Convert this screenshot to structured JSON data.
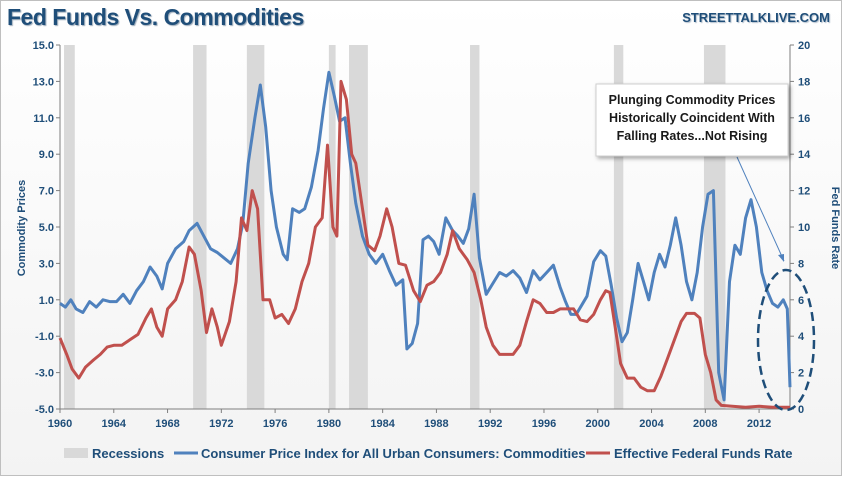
{
  "header": {
    "title": "Fed Funds Vs. Commodities",
    "brand": "STREETTALKLIVE.COM"
  },
  "annotation": {
    "lines": [
      "Plunging Commodity Prices",
      "Historically Coincident With",
      "Falling Rates...Not Rising"
    ]
  },
  "colors": {
    "cpi": "#4f81bd",
    "ffr": "#c0504d",
    "recession": "#d9d9d9",
    "text": "#1f4e79"
  },
  "chart_data": {
    "type": "line",
    "title": "Fed Funds Vs. Commodities",
    "xlabel": "",
    "ylabel": "Commodity Prices",
    "y2label": "Fed Funds Rate",
    "xlim": [
      1960,
      2014.3
    ],
    "ylim": [
      -5,
      15
    ],
    "y2lim": [
      0,
      20
    ],
    "x_ticks": [
      1960,
      1964,
      1968,
      1972,
      1976,
      1980,
      1984,
      1988,
      1992,
      1996,
      2000,
      2004,
      2008,
      2012
    ],
    "y_ticks": [
      "-5.0",
      "-3.0",
      "-1.0",
      "1.0",
      "3.0",
      "5.0",
      "7.0",
      "9.0",
      "11.0",
      "13.0",
      "15.0"
    ],
    "y2_ticks": [
      "0",
      "2",
      "4",
      "6",
      "8",
      "10",
      "12",
      "14",
      "16",
      "18",
      "20"
    ],
    "legend": [
      "Recessions",
      "Consumer Price Index for All Urban Consumers: Commodities",
      "Effective Federal Funds Rate"
    ],
    "legend_position": "bottom",
    "grid": false,
    "recessions": [
      [
        1960.3,
        1961.1
      ],
      [
        1969.9,
        1970.9
      ],
      [
        1973.9,
        1975.2
      ],
      [
        1980.0,
        1980.5
      ],
      [
        1981.5,
        1982.9
      ],
      [
        1990.5,
        1991.2
      ],
      [
        2001.2,
        2001.9
      ],
      [
        2007.9,
        2009.5
      ]
    ],
    "series": [
      {
        "name": "Consumer Price Index for All Urban Consumers: Commodities",
        "axis": "left",
        "points": [
          [
            1960,
            0.8
          ],
          [
            1960.4,
            0.6
          ],
          [
            1960.8,
            1.0
          ],
          [
            1961.2,
            0.5
          ],
          [
            1961.7,
            0.3
          ],
          [
            1962.2,
            0.9
          ],
          [
            1962.7,
            0.6
          ],
          [
            1963.2,
            1.0
          ],
          [
            1963.7,
            0.9
          ],
          [
            1964.2,
            0.9
          ],
          [
            1964.7,
            1.3
          ],
          [
            1965.2,
            0.8
          ],
          [
            1965.7,
            1.5
          ],
          [
            1966.2,
            2.0
          ],
          [
            1966.7,
            2.8
          ],
          [
            1967.2,
            2.3
          ],
          [
            1967.6,
            1.6
          ],
          [
            1968,
            3.0
          ],
          [
            1968.6,
            3.8
          ],
          [
            1969.2,
            4.2
          ],
          [
            1969.6,
            4.8
          ],
          [
            1970.2,
            5.2
          ],
          [
            1970.7,
            4.5
          ],
          [
            1971.2,
            3.8
          ],
          [
            1971.7,
            3.6
          ],
          [
            1972.2,
            3.3
          ],
          [
            1972.7,
            3.0
          ],
          [
            1973.2,
            3.8
          ],
          [
            1973.6,
            5.2
          ],
          [
            1974,
            8.5
          ],
          [
            1974.5,
            11.0
          ],
          [
            1974.9,
            12.8
          ],
          [
            1975.3,
            10.5
          ],
          [
            1975.7,
            7.0
          ],
          [
            1976.1,
            5.0
          ],
          [
            1976.6,
            3.5
          ],
          [
            1976.9,
            3.2
          ],
          [
            1977.3,
            6.0
          ],
          [
            1977.8,
            5.8
          ],
          [
            1978.2,
            6.0
          ],
          [
            1978.7,
            7.2
          ],
          [
            1979.2,
            9.2
          ],
          [
            1979.6,
            11.5
          ],
          [
            1980,
            13.5
          ],
          [
            1980.4,
            12.2
          ],
          [
            1980.8,
            10.8
          ],
          [
            1981.2,
            11.0
          ],
          [
            1981.6,
            8.5
          ],
          [
            1982,
            6.3
          ],
          [
            1982.5,
            4.5
          ],
          [
            1983,
            3.5
          ],
          [
            1983.5,
            3.0
          ],
          [
            1984,
            3.5
          ],
          [
            1984.5,
            2.6
          ],
          [
            1985,
            1.8
          ],
          [
            1985.5,
            2.1
          ],
          [
            1985.8,
            -1.7
          ],
          [
            1986.2,
            -1.4
          ],
          [
            1986.6,
            -0.3
          ],
          [
            1987,
            4.3
          ],
          [
            1987.4,
            4.5
          ],
          [
            1987.8,
            4.2
          ],
          [
            1988.2,
            3.5
          ],
          [
            1988.7,
            5.5
          ],
          [
            1989.2,
            4.8
          ],
          [
            1989.6,
            4.5
          ],
          [
            1990,
            4.1
          ],
          [
            1990.4,
            4.9
          ],
          [
            1990.8,
            6.8
          ],
          [
            1991.2,
            3.3
          ],
          [
            1991.7,
            1.3
          ],
          [
            1992.2,
            1.9
          ],
          [
            1992.7,
            2.5
          ],
          [
            1993.2,
            2.3
          ],
          [
            1993.7,
            2.6
          ],
          [
            1994.2,
            2.2
          ],
          [
            1994.7,
            1.4
          ],
          [
            1995.2,
            2.6
          ],
          [
            1995.7,
            2.1
          ],
          [
            1996.2,
            2.5
          ],
          [
            1996.7,
            2.9
          ],
          [
            1997.2,
            1.7
          ],
          [
            1997.6,
            0.9
          ],
          [
            1998,
            0.2
          ],
          [
            1998.4,
            0.2
          ],
          [
            1998.8,
            0.7
          ],
          [
            1999.2,
            1.2
          ],
          [
            1999.7,
            3.1
          ],
          [
            2000.2,
            3.7
          ],
          [
            2000.6,
            3.4
          ],
          [
            2001,
            1.8
          ],
          [
            2001.4,
            0.0
          ],
          [
            2001.8,
            -1.3
          ],
          [
            2002.2,
            -0.8
          ],
          [
            2002.6,
            1.0
          ],
          [
            2003,
            3.0
          ],
          [
            2003.4,
            2.0
          ],
          [
            2003.8,
            1.0
          ],
          [
            2004.2,
            2.5
          ],
          [
            2004.6,
            3.5
          ],
          [
            2005,
            2.8
          ],
          [
            2005.4,
            4.0
          ],
          [
            2005.8,
            5.5
          ],
          [
            2006.2,
            4.0
          ],
          [
            2006.6,
            2.0
          ],
          [
            2007,
            1.0
          ],
          [
            2007.4,
            2.5
          ],
          [
            2007.8,
            5.0
          ],
          [
            2008.2,
            6.8
          ],
          [
            2008.6,
            7.0
          ],
          [
            2009,
            -3.0
          ],
          [
            2009.4,
            -4.5
          ],
          [
            2009.8,
            2.0
          ],
          [
            2010.2,
            4.0
          ],
          [
            2010.6,
            3.5
          ],
          [
            2011,
            5.5
          ],
          [
            2011.4,
            6.5
          ],
          [
            2011.8,
            5.0
          ],
          [
            2012.2,
            2.5
          ],
          [
            2012.6,
            1.5
          ],
          [
            2013,
            0.8
          ],
          [
            2013.4,
            0.6
          ],
          [
            2013.8,
            1.0
          ],
          [
            2014.1,
            0.5
          ],
          [
            2014.3,
            -3.8
          ]
        ]
      },
      {
        "name": "Effective Federal Funds Rate",
        "axis": "right",
        "points": [
          [
            1960,
            3.9
          ],
          [
            1960.5,
            3.0
          ],
          [
            1960.9,
            2.2
          ],
          [
            1961.4,
            1.7
          ],
          [
            1961.9,
            2.3
          ],
          [
            1962.5,
            2.7
          ],
          [
            1963,
            3.0
          ],
          [
            1963.5,
            3.4
          ],
          [
            1964,
            3.5
          ],
          [
            1964.6,
            3.5
          ],
          [
            1965.2,
            3.8
          ],
          [
            1965.8,
            4.1
          ],
          [
            1966.4,
            5.0
          ],
          [
            1966.8,
            5.5
          ],
          [
            1967.2,
            4.5
          ],
          [
            1967.6,
            4.0
          ],
          [
            1968,
            5.5
          ],
          [
            1968.6,
            6.0
          ],
          [
            1969.1,
            7.0
          ],
          [
            1969.6,
            8.9
          ],
          [
            1970,
            8.5
          ],
          [
            1970.5,
            6.5
          ],
          [
            1970.9,
            4.2
          ],
          [
            1971.3,
            5.5
          ],
          [
            1971.7,
            4.5
          ],
          [
            1972,
            3.5
          ],
          [
            1972.6,
            4.8
          ],
          [
            1973.1,
            7.0
          ],
          [
            1973.5,
            10.5
          ],
          [
            1973.9,
            9.8
          ],
          [
            1974.3,
            12.0
          ],
          [
            1974.7,
            11.0
          ],
          [
            1975.1,
            6.0
          ],
          [
            1975.6,
            6.0
          ],
          [
            1976,
            5.0
          ],
          [
            1976.5,
            5.2
          ],
          [
            1977,
            4.7
          ],
          [
            1977.5,
            5.5
          ],
          [
            1978,
            7.0
          ],
          [
            1978.5,
            8.0
          ],
          [
            1979,
            10.0
          ],
          [
            1979.5,
            10.5
          ],
          [
            1979.9,
            14.5
          ],
          [
            1980.3,
            10.0
          ],
          [
            1980.6,
            9.5
          ],
          [
            1980.9,
            18.0
          ],
          [
            1981.3,
            17.0
          ],
          [
            1981.7,
            14.0
          ],
          [
            1982,
            13.5
          ],
          [
            1982.5,
            11.0
          ],
          [
            1982.9,
            9.0
          ],
          [
            1983.4,
            8.7
          ],
          [
            1983.8,
            9.5
          ],
          [
            1984.3,
            11.0
          ],
          [
            1984.7,
            10.0
          ],
          [
            1985.2,
            8.0
          ],
          [
            1985.7,
            7.9
          ],
          [
            1986.3,
            6.5
          ],
          [
            1986.8,
            5.9
          ],
          [
            1987.3,
            6.8
          ],
          [
            1987.8,
            7.0
          ],
          [
            1988.3,
            7.5
          ],
          [
            1988.8,
            8.5
          ],
          [
            1989.2,
            9.8
          ],
          [
            1989.7,
            8.8
          ],
          [
            1990.3,
            8.2
          ],
          [
            1990.8,
            7.5
          ],
          [
            1991.3,
            6.0
          ],
          [
            1991.7,
            4.5
          ],
          [
            1992.2,
            3.5
          ],
          [
            1992.7,
            3.0
          ],
          [
            1993.2,
            3.0
          ],
          [
            1993.7,
            3.0
          ],
          [
            1994.2,
            3.5
          ],
          [
            1994.7,
            4.8
          ],
          [
            1995.2,
            6.0
          ],
          [
            1995.7,
            5.8
          ],
          [
            1996.2,
            5.3
          ],
          [
            1996.7,
            5.3
          ],
          [
            1997.2,
            5.5
          ],
          [
            1997.7,
            5.5
          ],
          [
            1998.2,
            5.5
          ],
          [
            1998.7,
            4.9
          ],
          [
            1999.2,
            4.8
          ],
          [
            1999.7,
            5.2
          ],
          [
            2000.2,
            6.0
          ],
          [
            2000.6,
            6.5
          ],
          [
            2000.9,
            6.4
          ],
          [
            2001.3,
            4.5
          ],
          [
            2001.7,
            2.5
          ],
          [
            2002.2,
            1.7
          ],
          [
            2002.7,
            1.7
          ],
          [
            2003.2,
            1.2
          ],
          [
            2003.7,
            1.0
          ],
          [
            2004.2,
            1.0
          ],
          [
            2004.7,
            1.8
          ],
          [
            2005.2,
            2.8
          ],
          [
            2005.7,
            3.8
          ],
          [
            2006.2,
            4.8
          ],
          [
            2006.6,
            5.25
          ],
          [
            2007.2,
            5.25
          ],
          [
            2007.6,
            5.0
          ],
          [
            2008,
            3.0
          ],
          [
            2008.4,
            2.0
          ],
          [
            2008.8,
            0.5
          ],
          [
            2009.2,
            0.2
          ],
          [
            2010,
            0.15
          ],
          [
            2011,
            0.1
          ],
          [
            2012,
            0.15
          ],
          [
            2013,
            0.1
          ],
          [
            2014.3,
            0.1
          ]
        ]
      }
    ]
  }
}
